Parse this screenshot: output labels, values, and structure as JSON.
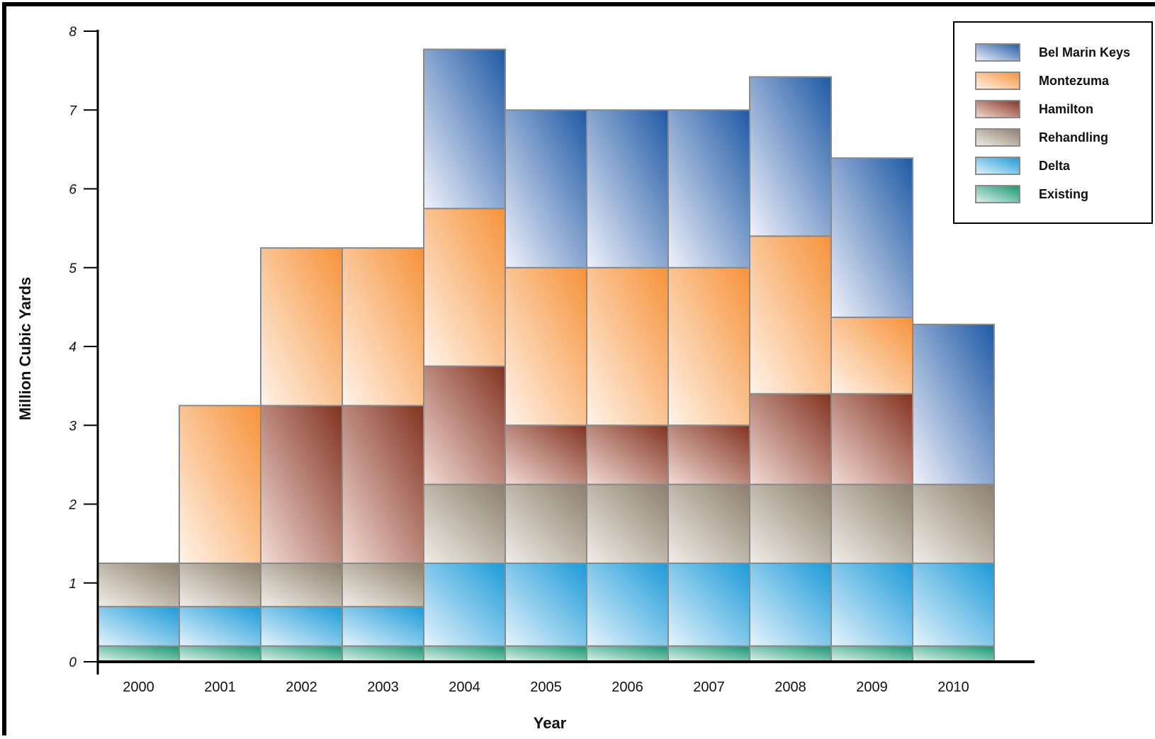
{
  "chart_data": {
    "type": "bar",
    "stacked": true,
    "xlabel": "Year",
    "ylabel": "Million Cubic Yards",
    "ylim": [
      0,
      8
    ],
    "yticks": [
      "0",
      "1",
      "2",
      "3",
      "4",
      "5",
      "6",
      "7",
      "8"
    ],
    "categories": [
      "2000",
      "2001",
      "2002",
      "2003",
      "2004",
      "2005",
      "2006",
      "2007",
      "2008",
      "2009",
      "2010"
    ],
    "legend_position": "top-right",
    "series": [
      {
        "name": "Existing",
        "values": [
          0.2,
          0.2,
          0.2,
          0.2,
          0.2,
          0.2,
          0.2,
          0.2,
          0.2,
          0.2,
          0.2
        ]
      },
      {
        "name": "Delta",
        "values": [
          0.5,
          0.5,
          0.5,
          0.5,
          1.05,
          1.05,
          1.05,
          1.05,
          1.05,
          1.05,
          1.05
        ]
      },
      {
        "name": "Rehandling",
        "values": [
          0.55,
          0.55,
          0.55,
          0.55,
          1.0,
          1.0,
          1.0,
          1.0,
          1.0,
          1.0,
          1.0
        ]
      },
      {
        "name": "Hamilton",
        "values": [
          0,
          0,
          2.0,
          2.0,
          1.5,
          0.75,
          0.75,
          0.75,
          1.15,
          1.15,
          0
        ]
      },
      {
        "name": "Montezuma",
        "values": [
          0,
          2.0,
          2.0,
          2.0,
          2.0,
          2.0,
          2.0,
          2.0,
          2.0,
          0.97,
          0
        ]
      },
      {
        "name": "Bel Marin Keys",
        "values": [
          0,
          0,
          0,
          0,
          2.02,
          2.0,
          2.0,
          2.0,
          2.02,
          2.02,
          2.03
        ]
      }
    ],
    "legend": [
      "Bel Marin Keys",
      "Montezuma",
      "Hamilton",
      "Rehandling",
      "Delta",
      "Existing"
    ],
    "colors": {
      "Bel Marin Keys": {
        "dark": "#1f5aa6",
        "light": "#f1f2fb"
      },
      "Montezuma": {
        "dark": "#f7923a",
        "light": "#fff4ea"
      },
      "Hamilton": {
        "dark": "#82321f",
        "light": "#f3dcd6"
      },
      "Rehandling": {
        "dark": "#8c7f6c",
        "light": "#f1eee8"
      },
      "Delta": {
        "dark": "#1c9ad9",
        "light": "#e6f4fc"
      },
      "Existing": {
        "dark": "#14966f",
        "light": "#e1f3ec"
      }
    },
    "bar_outline": "#8a8a8a"
  }
}
